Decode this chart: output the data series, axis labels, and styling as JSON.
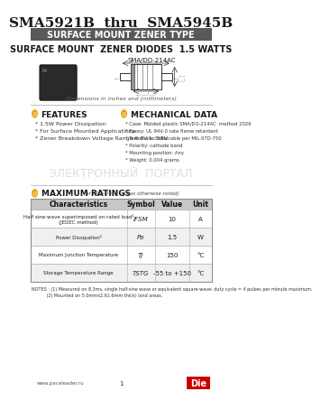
{
  "title": "SMA5921B  thru  SMA5945B",
  "subtitle_bar": "SURFACE MOUNT ZENER TYPE",
  "subtitle2": "SURFACE MOUNT  ZENER DIODES  1.5 WATTS",
  "package_label": "SMA/DO-214AC",
  "dim_note": "Dimensions in inches and (millimeters)",
  "features_title": "FEATURES",
  "features": [
    "1.5W Power Dissipation",
    "For Surface Mounted Applications",
    "Zener Breakdown Voltage Range 6.8V to 58V"
  ],
  "mech_title": "MECHANICAL DATA",
  "mech": [
    "Case: Molded plastic SMA/DO-214AC  method 2026",
    "Epoxy: UL 94V-0 rate flame retardant",
    "Terminals: Solderable per MIL-STD-750",
    "Polarity: cathode band",
    "Mounting position: Any",
    "Weight: 0.004 grams"
  ],
  "ratings_title": "MAXIMUM RATINGS",
  "ratings_note": "(at TA = 25°C unless otherwise noted)",
  "table_headers": [
    "Characteristics",
    "Symbol",
    "Value",
    "Unit"
  ],
  "table_rows": [
    [
      "Half sine-wave superimposed on rated load¹\n(JEDEC method)",
      "IFSM",
      "10",
      "A"
    ],
    [
      "Power Dissipation²",
      "Pᴅ",
      "1.5",
      "W"
    ],
    [
      "Maximum Junction Temperature",
      "TJ",
      "150",
      "°C"
    ],
    [
      "Storage Temperature Range",
      "TSTG",
      "-55 to +150",
      "°C"
    ]
  ],
  "notes": "NOTES : (1) Measured on 8.3ms, single half-sine wave or equivalent square-wave; duty cycle = 4 pulses per minute maximum.\n           (2) Mounted on 5.0mmx2.61.6mm thick) land areas.",
  "footer_url": "www.paceleader.ru",
  "footer_page": "1",
  "bar_color": "#595959",
  "header_bg": "#d0d0d0",
  "section_icon_color": "#e8a000",
  "table_header_bg": "#c8c8c8",
  "bg_color": "#ffffff",
  "text_color": "#000000",
  "title_color": "#1a1a1a",
  "watermark_color": "#d0d0d8",
  "ratings_bar_color": "#e8a000"
}
